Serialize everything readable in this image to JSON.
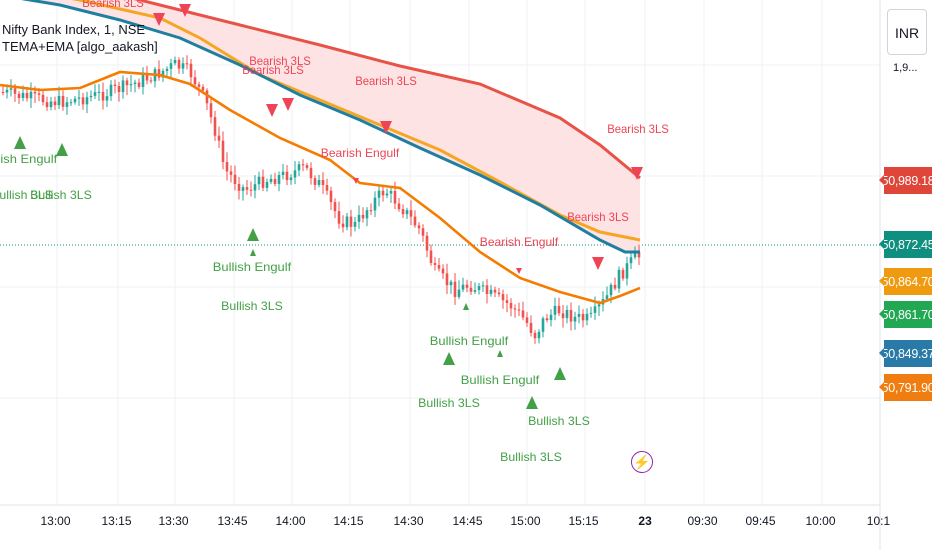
{
  "header": {
    "symbol": "Nifty Bank Index, 1, NSE",
    "indicator": "TEMA+EMA [algo_aakash]"
  },
  "currency": "INR",
  "price_tags": [
    {
      "label": "50,989.18",
      "color": "#e0453a"
    },
    {
      "label": "50,872.45",
      "color": "#0f8f7f"
    },
    {
      "label": "50,864.70",
      "color": "#f09a10"
    },
    {
      "label": "50,861.70",
      "color": "#22a853"
    },
    {
      "label": "50,849.37",
      "color": "#2a7aa8"
    },
    {
      "label": "50,791.90",
      "color": "#f07d10"
    }
  ],
  "top_partial_label": "1,9...",
  "time_axis": [
    "13:00",
    "13:15",
    "13:30",
    "13:45",
    "14:00",
    "14:15",
    "14:30",
    "14:45",
    "15:00",
    "15:15",
    "23",
    "09:30",
    "09:45",
    "10:00",
    "10:1"
  ],
  "signals": {
    "bearish_3ls": "Bearish 3LS",
    "bearish_engulf": "Bearish Engulf",
    "bullish_3ls": "Bullish 3LS",
    "bullish_engulf": "Bullish Engulf"
  },
  "colors": {
    "bull": "#26a69a",
    "bear": "#ef5350",
    "tema": "#1f7fa0",
    "ema_fast": "#f5a623",
    "ema_slow": "#f57c00",
    "band_top": "#e85347",
    "band_fill": "#fde3e3",
    "bull_signal": "#43a047",
    "bear_signal": "#ee4455"
  },
  "chart_data": {
    "type": "candlestick",
    "series": [
      {
        "name": "TEMA"
      },
      {
        "name": "EMA"
      },
      {
        "name": "EMA"
      }
    ]
  }
}
